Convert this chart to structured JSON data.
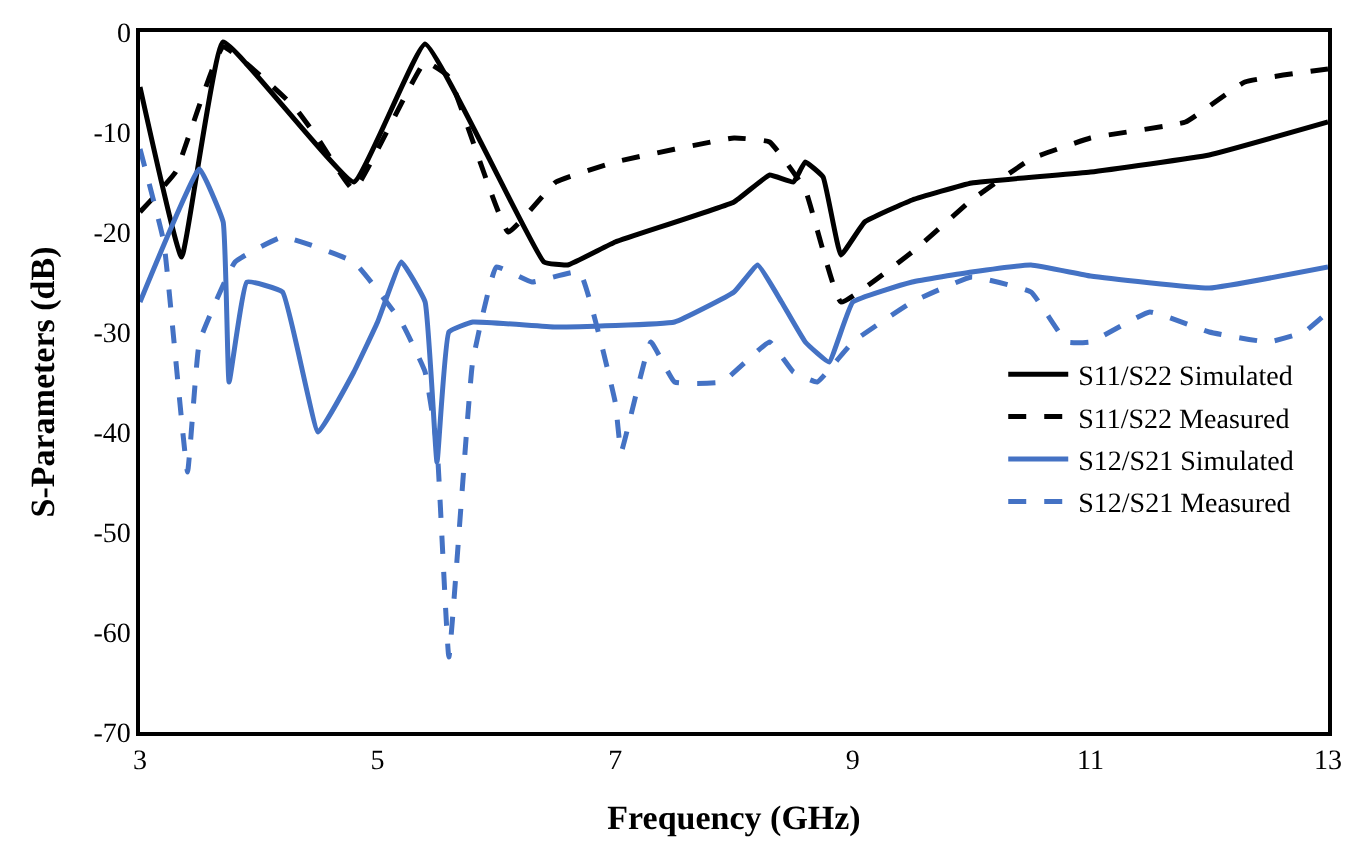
{
  "chart_data": {
    "type": "line",
    "xlabel": "Frequency (GHz)",
    "ylabel": "S-Parameters (dB)",
    "xlim": [
      3,
      13
    ],
    "xticks": [
      3,
      5,
      7,
      9,
      11,
      13
    ],
    "ylim": [
      -70,
      0
    ],
    "yticks": [
      -70,
      -60,
      -50,
      -40,
      -30,
      -20,
      -10,
      0
    ],
    "legend": "right",
    "marker": "none",
    "series": [
      {
        "name": "S11/S22 Simulated",
        "color": "#000000",
        "line_style": "solid",
        "x": [
          3,
          3.35,
          3.7,
          4.8,
          5.4,
          6.4,
          6.6,
          7,
          8,
          8.3,
          8.5,
          8.6,
          8.75,
          8.9,
          9.1,
          9.5,
          10,
          11,
          12,
          13
        ],
        "values": [
          -5.5,
          -22.5,
          -1,
          -15,
          -1.2,
          -23,
          -23.3,
          -21,
          -17,
          -14.3,
          -15,
          -13,
          -14.5,
          -22.3,
          -19,
          -16.8,
          -15.1,
          -14,
          -12.3,
          -9
        ]
      },
      {
        "name": "S11/S22 Measured",
        "color": "#000000",
        "line_style": "dashed",
        "x": [
          3,
          3.3,
          3.7,
          4.3,
          4.5,
          4.8,
          5.4,
          5.6,
          6.1,
          6.5,
          7,
          8,
          8.3,
          8.6,
          8.9,
          9.5,
          10,
          10.5,
          11,
          11.8,
          12.3,
          13
        ],
        "values": [
          -18,
          -14,
          -1.5,
          -7.5,
          -10.7,
          -15.8,
          -3,
          -4.5,
          -20,
          -15,
          -13,
          -10.6,
          -11,
          -15.8,
          -27,
          -22,
          -16.8,
          -12.7,
          -10.6,
          -9,
          -5,
          -3.7
        ]
      },
      {
        "name": "S12/S21 Simulated",
        "color": "#4472c4",
        "line_style": "solid",
        "x": [
          3,
          3.5,
          3.7,
          3.75,
          3.9,
          4.2,
          4.5,
          4.8,
          5,
          5.2,
          5.4,
          5.5,
          5.6,
          5.8,
          6.5,
          7.5,
          8,
          8.2,
          8.4,
          8.6,
          8.8,
          9,
          9.5,
          10,
          10.5,
          11,
          12,
          13
        ],
        "values": [
          -27,
          -13.7,
          -19,
          -35,
          -25,
          -26,
          -40,
          -34,
          -29,
          -23,
          -27,
          -43,
          -30,
          -29,
          -29.5,
          -29,
          -26,
          -23.3,
          -27,
          -31,
          -33,
          -27,
          -25,
          -24,
          -23.3,
          -24.4,
          -25.6,
          -23.5
        ]
      },
      {
        "name": "S12/S21 Measured",
        "color": "#4472c4",
        "line_style": "dashed",
        "x": [
          3,
          3.2,
          3.4,
          3.5,
          3.8,
          4.2,
          4.8,
          5.2,
          5.4,
          5.5,
          5.6,
          5.8,
          6,
          6.3,
          6.7,
          7,
          7.05,
          7.3,
          7.5,
          7.9,
          8.3,
          8.5,
          8.7,
          9,
          9.5,
          10,
          10.5,
          10.8,
          11,
          11.5,
          12,
          12.5,
          12.8,
          13
        ],
        "values": [
          -11.7,
          -21,
          -44,
          -31,
          -23,
          -20.5,
          -23,
          -29,
          -34,
          -41.5,
          -62.5,
          -33,
          -23.5,
          -25,
          -24,
          -37,
          -42,
          -31,
          -35,
          -35,
          -31,
          -34,
          -35,
          -31,
          -27,
          -24.5,
          -26,
          -31,
          -31,
          -28,
          -30,
          -31,
          -30,
          -28
        ]
      }
    ]
  }
}
